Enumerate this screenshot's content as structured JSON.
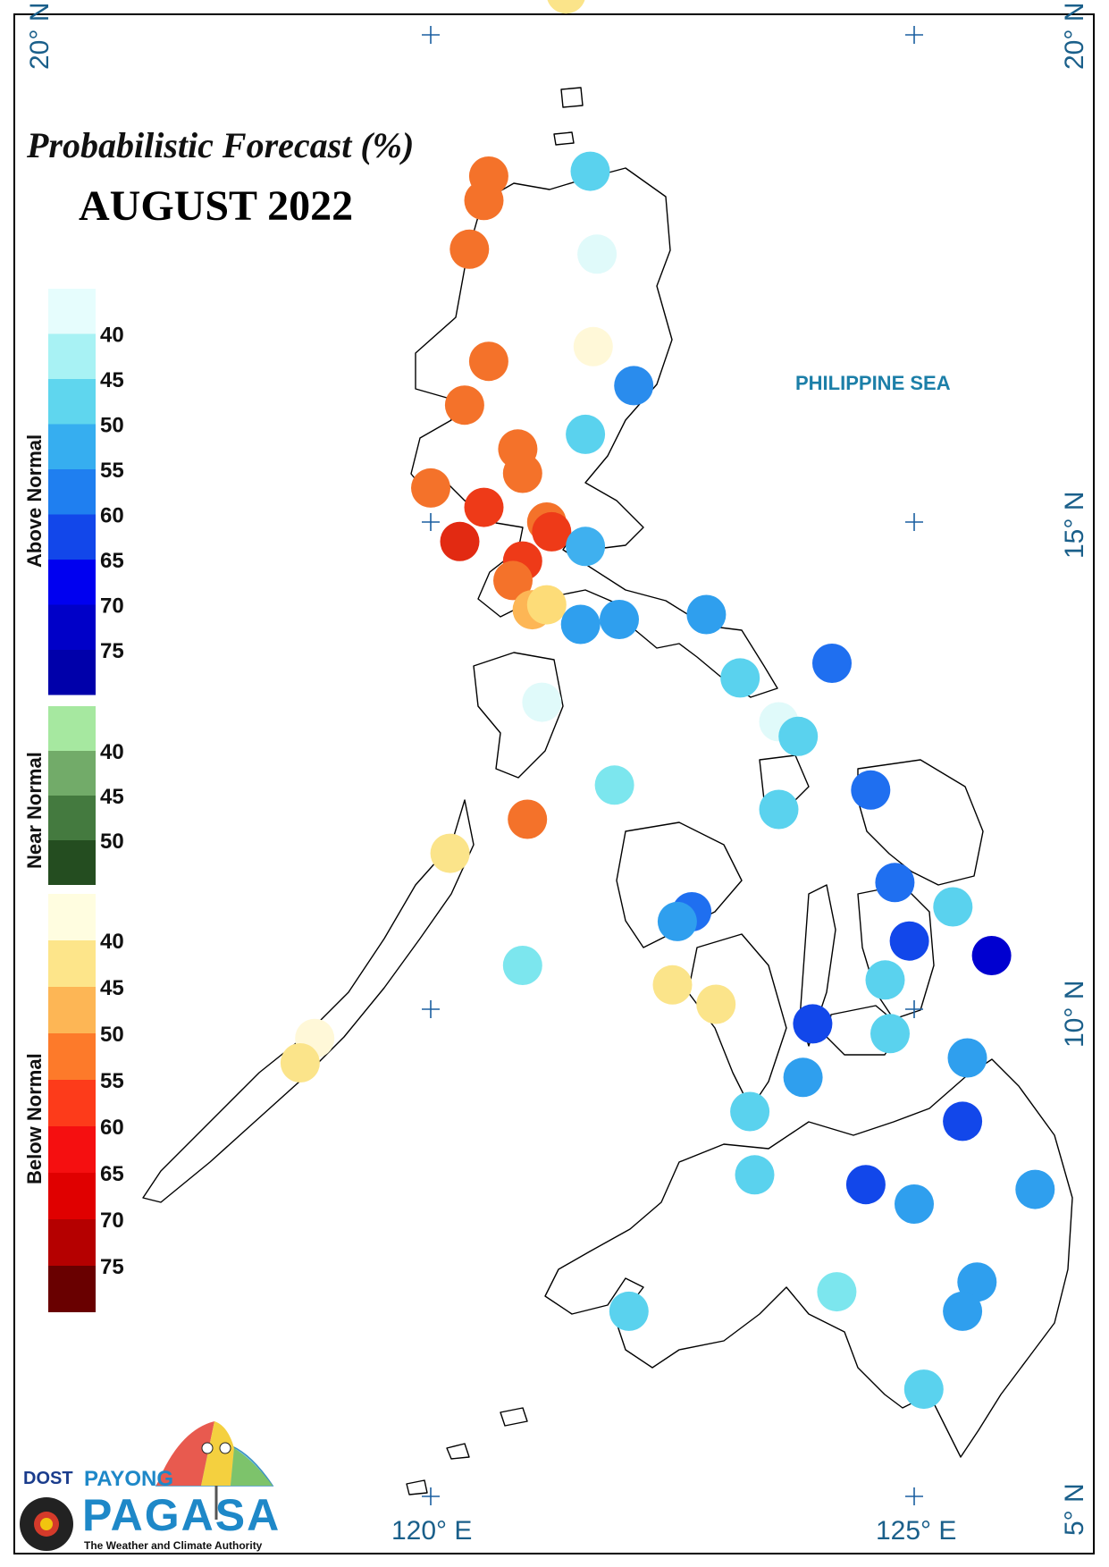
{
  "title": "Probabilistic Forecast (%)",
  "period": "AUGUST 2022",
  "sea_label": "PHILIPPINE SEA",
  "axis_labels": {
    "lat_20_left": "20° N",
    "lat_20_right": "20° N",
    "lat_15": "15° N",
    "lat_10": "10° N",
    "lat_5": "5° N",
    "lon_120": "120° E",
    "lon_125": "125° E"
  },
  "legend": {
    "above": {
      "label": "Above Normal",
      "ticks": [
        "40",
        "45",
        "50",
        "55",
        "60",
        "65",
        "70",
        "75"
      ],
      "colors": [
        "#e6fdfd",
        "#a8f2f4",
        "#5fd6ee",
        "#36aef0",
        "#1f7ff0",
        "#1247ea",
        "#0000f0",
        "#0000c8",
        "#0000aa"
      ]
    },
    "near": {
      "label": "Near Normal",
      "ticks": [
        "40",
        "45",
        "50"
      ],
      "colors": [
        "#a6e8a0",
        "#72ab69",
        "#447a3f",
        "#244d20"
      ]
    },
    "below": {
      "label": "Below Normal",
      "ticks": [
        "40",
        "45",
        "50",
        "55",
        "60",
        "65",
        "70",
        "75"
      ],
      "colors": [
        "#fffde0",
        "#fde58a",
        "#fdb655",
        "#fd7a2a",
        "#fd3b1a",
        "#f50f10",
        "#e00000",
        "#b50000",
        "#690000"
      ]
    }
  },
  "stations": [
    {
      "lon": 121.4,
      "lat": 20.42,
      "category": "below",
      "level": "40-45",
      "color": "#fbe48a"
    },
    {
      "lon": 121.65,
      "lat": 18.6,
      "category": "above",
      "level": "45-50",
      "color": "#5ad2ee"
    },
    {
      "lon": 120.6,
      "lat": 18.55,
      "category": "below",
      "level": "55-60",
      "color": "#f4722a"
    },
    {
      "lon": 120.55,
      "lat": 18.3,
      "category": "below",
      "level": "55-60",
      "color": "#f4722a"
    },
    {
      "lon": 120.4,
      "lat": 17.8,
      "category": "below",
      "level": "55-60",
      "color": "#f4722a"
    },
    {
      "lon": 121.72,
      "lat": 17.75,
      "category": "above",
      "level": "<40",
      "color": "#e0fafa"
    },
    {
      "lon": 121.68,
      "lat": 16.8,
      "category": "below",
      "level": "<40",
      "color": "#fff8d8"
    },
    {
      "lon": 120.6,
      "lat": 16.65,
      "category": "below",
      "level": "55-60",
      "color": "#f4722a"
    },
    {
      "lon": 122.1,
      "lat": 16.4,
      "category": "above",
      "level": "55-60",
      "color": "#2a8ced"
    },
    {
      "lon": 120.35,
      "lat": 16.2,
      "category": "below",
      "level": "55-60",
      "color": "#f4722a"
    },
    {
      "lon": 121.6,
      "lat": 15.9,
      "category": "above",
      "level": "45-50",
      "color": "#5ad2ee"
    },
    {
      "lon": 120.9,
      "lat": 15.75,
      "category": "below",
      "level": "55-60",
      "color": "#f4722a"
    },
    {
      "lon": 120.95,
      "lat": 15.5,
      "category": "below",
      "level": "55-60",
      "color": "#f4722a"
    },
    {
      "lon": 120.0,
      "lat": 15.35,
      "category": "below",
      "level": "55-60",
      "color": "#f4722a"
    },
    {
      "lon": 120.55,
      "lat": 15.15,
      "category": "below",
      "level": "60-65",
      "color": "#ee3a18"
    },
    {
      "lon": 121.2,
      "lat": 15.0,
      "category": "below",
      "level": "55-60",
      "color": "#f4722a"
    },
    {
      "lon": 121.25,
      "lat": 14.9,
      "category": "below",
      "level": "60-65",
      "color": "#ee3a18"
    },
    {
      "lon": 120.3,
      "lat": 14.8,
      "category": "below",
      "level": "60-65",
      "color": "#e22a12"
    },
    {
      "lon": 121.6,
      "lat": 14.75,
      "category": "above",
      "level": "45-50",
      "color": "#3fb0ef"
    },
    {
      "lon": 120.95,
      "lat": 14.6,
      "category": "below",
      "level": "60-65",
      "color": "#ee3a18"
    },
    {
      "lon": 120.85,
      "lat": 14.4,
      "category": "below",
      "level": "55-60",
      "color": "#f4722a"
    },
    {
      "lon": 121.05,
      "lat": 14.1,
      "category": "below",
      "level": "45-50",
      "color": "#fdb655"
    },
    {
      "lon": 121.2,
      "lat": 14.15,
      "category": "below",
      "level": "40-45",
      "color": "#fddc78"
    },
    {
      "lon": 121.55,
      "lat": 13.95,
      "category": "above",
      "level": "50-55",
      "color": "#2f9fee"
    },
    {
      "lon": 121.95,
      "lat": 14.0,
      "category": "above",
      "level": "50-55",
      "color": "#2f9fee"
    },
    {
      "lon": 122.85,
      "lat": 14.05,
      "category": "above",
      "level": "50-55",
      "color": "#2f9fee"
    },
    {
      "lon": 124.15,
      "lat": 13.55,
      "category": "above",
      "level": "55-60",
      "color": "#1f6ff0"
    },
    {
      "lon": 123.2,
      "lat": 13.4,
      "category": "above",
      "level": "45-50",
      "color": "#5ad2ee"
    },
    {
      "lon": 121.15,
      "lat": 13.15,
      "category": "above",
      "level": "<40",
      "color": "#e0fafa"
    },
    {
      "lon": 123.6,
      "lat": 12.95,
      "category": "above",
      "level": "<40",
      "color": "#e0fafa"
    },
    {
      "lon": 123.8,
      "lat": 12.8,
      "category": "above",
      "level": "45-50",
      "color": "#5ad2ee"
    },
    {
      "lon": 121.9,
      "lat": 12.3,
      "category": "above",
      "level": "40-45",
      "color": "#7ce6ee"
    },
    {
      "lon": 124.55,
      "lat": 12.25,
      "category": "above",
      "level": "55-60",
      "color": "#1f6ff0"
    },
    {
      "lon": 123.6,
      "lat": 12.05,
      "category": "above",
      "level": "45-50",
      "color": "#5ad2ee"
    },
    {
      "lon": 121.0,
      "lat": 11.95,
      "category": "below",
      "level": "55-60",
      "color": "#f4722a"
    },
    {
      "lon": 120.2,
      "lat": 11.6,
      "category": "below",
      "level": "40-45",
      "color": "#fbe48a"
    },
    {
      "lon": 124.8,
      "lat": 11.3,
      "category": "above",
      "level": "55-60",
      "color": "#1f6ff0"
    },
    {
      "lon": 125.4,
      "lat": 11.05,
      "category": "above",
      "level": "45-50",
      "color": "#5ad2ee"
    },
    {
      "lon": 122.7,
      "lat": 11.0,
      "category": "above",
      "level": "55-60",
      "color": "#1f6ff0"
    },
    {
      "lon": 122.55,
      "lat": 10.9,
      "category": "above",
      "level": "50-55",
      "color": "#2f9fee"
    },
    {
      "lon": 124.95,
      "lat": 10.7,
      "category": "above",
      "level": "60-65",
      "color": "#1247ea"
    },
    {
      "lon": 125.8,
      "lat": 10.55,
      "category": "above",
      "level": "70-75",
      "color": "#0000d0"
    },
    {
      "lon": 120.95,
      "lat": 10.45,
      "category": "above",
      "level": "40-45",
      "color": "#7ce6ee"
    },
    {
      "lon": 122.5,
      "lat": 10.25,
      "category": "below",
      "level": "40-45",
      "color": "#fbe48a"
    },
    {
      "lon": 124.7,
      "lat": 10.3,
      "category": "above",
      "level": "45-50",
      "color": "#5ad2ee"
    },
    {
      "lon": 122.95,
      "lat": 10.05,
      "category": "below",
      "level": "40-45",
      "color": "#fbe48a"
    },
    {
      "lon": 123.95,
      "lat": 9.85,
      "category": "above",
      "level": "60-65",
      "color": "#1247ea"
    },
    {
      "lon": 124.75,
      "lat": 9.75,
      "category": "above",
      "level": "45-50",
      "color": "#5ad2ee"
    },
    {
      "lon": 125.55,
      "lat": 9.5,
      "category": "above",
      "level": "50-55",
      "color": "#2f9fee"
    },
    {
      "lon": 123.85,
      "lat": 9.3,
      "category": "above",
      "level": "50-55",
      "color": "#2f9fee"
    },
    {
      "lon": 118.8,
      "lat": 9.7,
      "category": "below",
      "level": "<40",
      "color": "#fff8d8"
    },
    {
      "lon": 118.65,
      "lat": 9.45,
      "category": "below",
      "level": "40-45",
      "color": "#fbe48a"
    },
    {
      "lon": 123.3,
      "lat": 8.95,
      "category": "above",
      "level": "45-50",
      "color": "#5ad2ee"
    },
    {
      "lon": 125.5,
      "lat": 8.85,
      "category": "above",
      "level": "60-65",
      "color": "#1247ea"
    },
    {
      "lon": 123.35,
      "lat": 8.3,
      "category": "above",
      "level": "45-50",
      "color": "#5ad2ee"
    },
    {
      "lon": 124.5,
      "lat": 8.2,
      "category": "above",
      "level": "60-65",
      "color": "#1247ea"
    },
    {
      "lon": 125.0,
      "lat": 8.0,
      "category": "above",
      "level": "50-55",
      "color": "#2f9fee"
    },
    {
      "lon": 126.25,
      "lat": 8.15,
      "category": "above",
      "level": "50-55",
      "color": "#2f9fee"
    },
    {
      "lon": 124.2,
      "lat": 7.1,
      "category": "above",
      "level": "40-45",
      "color": "#7ce6ee"
    },
    {
      "lon": 125.65,
      "lat": 7.2,
      "category": "above",
      "level": "50-55",
      "color": "#2f9fee"
    },
    {
      "lon": 125.5,
      "lat": 6.9,
      "category": "above",
      "level": "50-55",
      "color": "#2f9fee"
    },
    {
      "lon": 122.05,
      "lat": 6.9,
      "category": "above",
      "level": "45-50",
      "color": "#5ad2ee"
    },
    {
      "lon": 125.1,
      "lat": 6.1,
      "category": "above",
      "level": "45-50",
      "color": "#5ad2ee"
    }
  ],
  "logo": {
    "org": "DOST",
    "brand_top": "PAYONG",
    "brand_main": "PAGASA",
    "tagline": "The Weather and Climate Authority"
  }
}
